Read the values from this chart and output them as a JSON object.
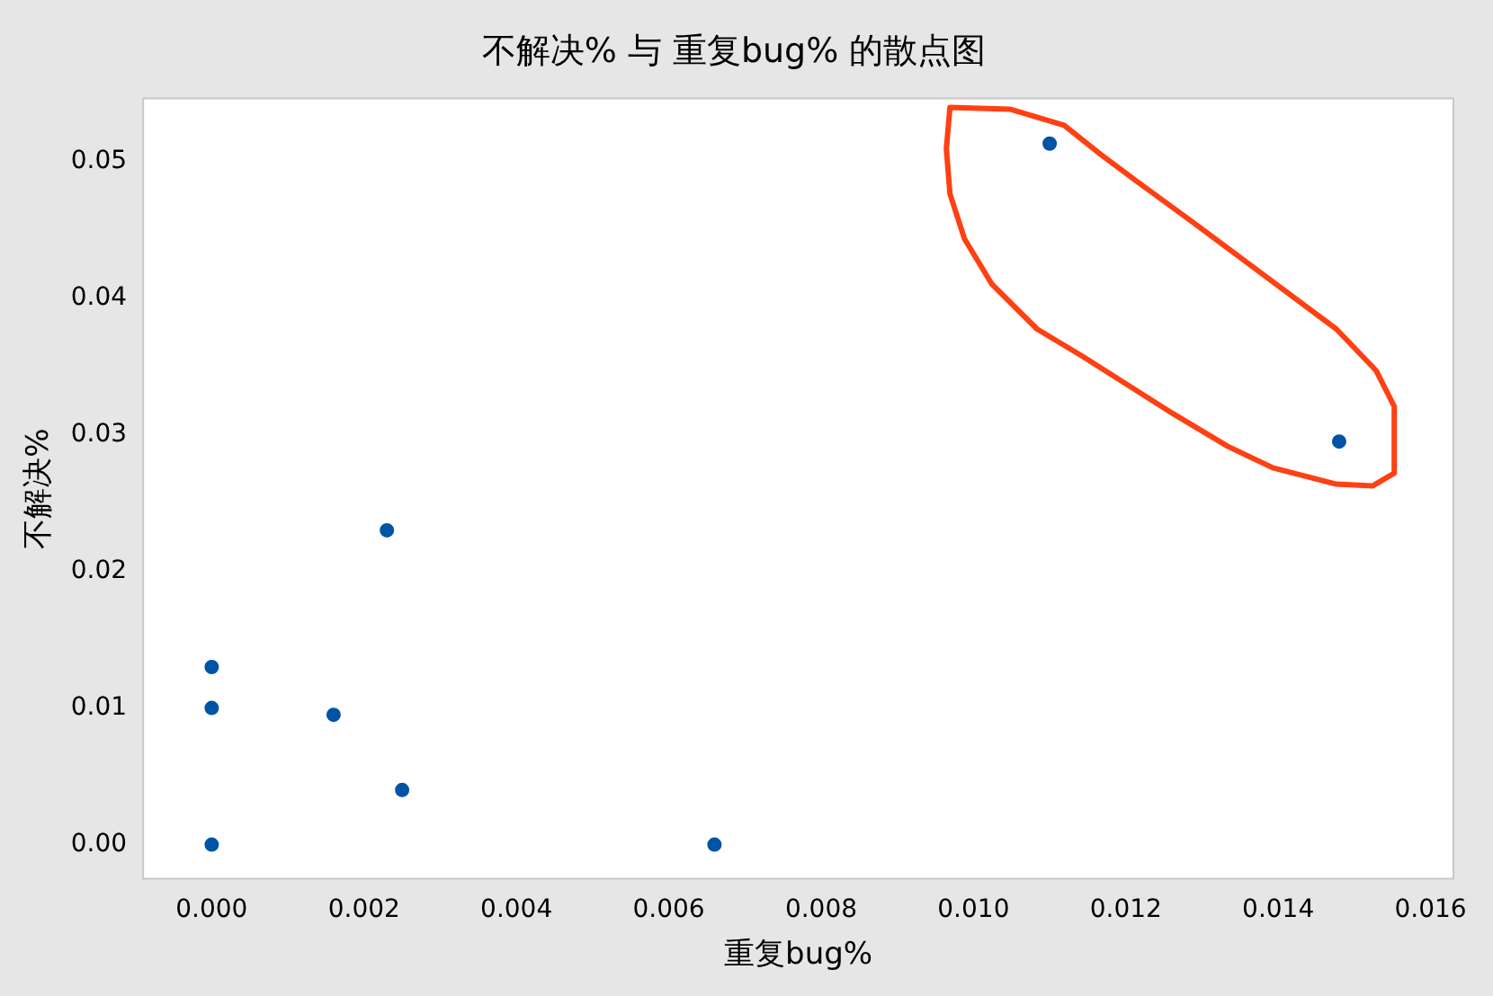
{
  "chart_data": {
    "type": "scatter",
    "title": "不解决% 与 重复bug% 的散点图",
    "xlabel": "重复bug%",
    "ylabel": "不解决%",
    "series": [
      {
        "color": "#0054a6",
        "x": [
          0,
          0,
          0,
          0.0016,
          0.0023,
          0.0025,
          0.0066,
          0.011,
          0.0148
        ],
        "values": [
          0.013,
          0.01,
          0,
          0.0095,
          0.023,
          0.004,
          0,
          0.0513,
          0.0295
        ]
      }
    ],
    "xlim": [
      -0.0009,
      0.0163
    ],
    "ylim": [
      -0.0025,
      0.0546
    ],
    "xticks": [
      {
        "value": 0,
        "label": "0.000"
      },
      {
        "value": 0.002,
        "label": "0.002"
      },
      {
        "value": 0.004,
        "label": "0.004"
      },
      {
        "value": 0.006,
        "label": "0.006"
      },
      {
        "value": 0.008,
        "label": "0.008"
      },
      {
        "value": 0.01,
        "label": "0.010"
      },
      {
        "value": 0.012,
        "label": "0.012"
      },
      {
        "value": 0.014,
        "label": "0.014"
      },
      {
        "value": 0.016,
        "label": "0.016"
      }
    ],
    "yticks": [
      {
        "value": 0,
        "label": "0.00"
      },
      {
        "value": 0.01,
        "label": "0.01"
      },
      {
        "value": 0.02,
        "label": "0.02"
      },
      {
        "value": 0.03,
        "label": "0.03"
      },
      {
        "value": 0.04,
        "label": "0.04"
      },
      {
        "value": 0.05,
        "label": "0.05"
      }
    ],
    "grid": false,
    "legend": false,
    "marker": "circle"
  }
}
